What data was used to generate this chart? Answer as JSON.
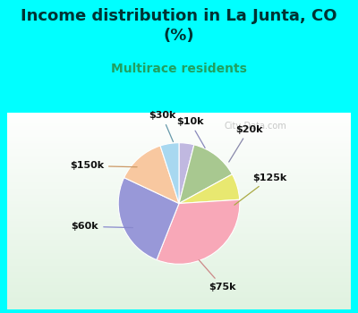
{
  "title": "Income distribution in La Junta, CO\n(%)",
  "subtitle": "Multirace residents",
  "slices": [
    {
      "label": "$10k",
      "value": 4,
      "color": "#c0b8e0"
    },
    {
      "label": "$20k",
      "value": 13,
      "color": "#a8c890"
    },
    {
      "label": "$125k",
      "value": 7,
      "color": "#e8e870"
    },
    {
      "label": "$75k",
      "value": 32,
      "color": "#f8a8b8"
    },
    {
      "label": "$60k",
      "value": 26,
      "color": "#9898d8"
    },
    {
      "label": "$150k",
      "value": 13,
      "color": "#f8c8a0"
    },
    {
      "label": "$30k",
      "value": 5,
      "color": "#a8d8f0"
    }
  ],
  "bg_cyan": "#00ffff",
  "bg_panel": "#e8f4e8",
  "title_color": "#003333",
  "subtitle_color": "#20a060",
  "watermark": "City-Data.com",
  "title_fontsize": 13,
  "subtitle_fontsize": 10
}
